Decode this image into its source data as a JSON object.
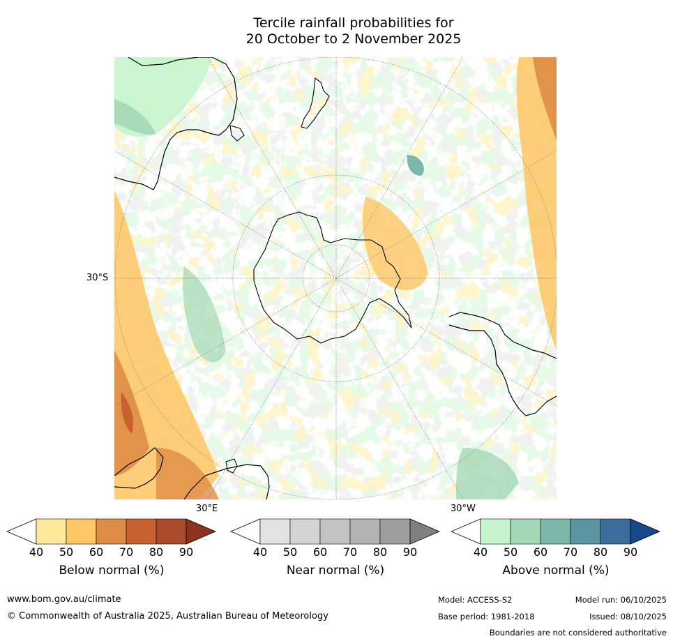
{
  "title": {
    "line1": "Tercile rainfall probabilities for",
    "line2": "20 October to 2 November 2025"
  },
  "map": {
    "lat_labels": [
      "30°S",
      "30°E",
      "30°W"
    ],
    "colors": {
      "background": "#ffffff",
      "coast": "#000000",
      "border": "#888888",
      "grid": "#7a7a7a"
    }
  },
  "colorbars": [
    {
      "id": "below",
      "label": "Below normal (%)",
      "ticks": [
        "40",
        "50",
        "60",
        "70",
        "80",
        "90"
      ],
      "colors": [
        "#ffffff",
        "#fee99a",
        "#fec664",
        "#de8d45",
        "#c9612f",
        "#a94a2a",
        "#8c321e"
      ]
    },
    {
      "id": "near",
      "label": "Near normal (%)",
      "ticks": [
        "40",
        "50",
        "60",
        "70",
        "80",
        "90"
      ],
      "colors": [
        "#ffffff",
        "#e3e3e3",
        "#d4d4d4",
        "#c3c3c3",
        "#b3b3b3",
        "#9e9e9e",
        "#808080"
      ]
    },
    {
      "id": "above",
      "label": "Above normal (%)",
      "ticks": [
        "40",
        "50",
        "60",
        "70",
        "80",
        "90"
      ],
      "colors": [
        "#ffffff",
        "#c6f5cd",
        "#a3d8b7",
        "#7db6ab",
        "#5b94a0",
        "#3a6d9a",
        "#16498a"
      ]
    }
  ],
  "footer": {
    "website": "www.bom.gov.au/climate",
    "copyright": "© Commonwealth of Australia 2025, Australian Bureau of Meteorology",
    "model": "Model: ACCESS-S2",
    "base_period": "Base period: 1981-2018",
    "model_run": "Model run: 06/10/2025",
    "issued": "Issued: 08/10/2025",
    "disclaimer": "Boundaries are not considered authoritative"
  }
}
